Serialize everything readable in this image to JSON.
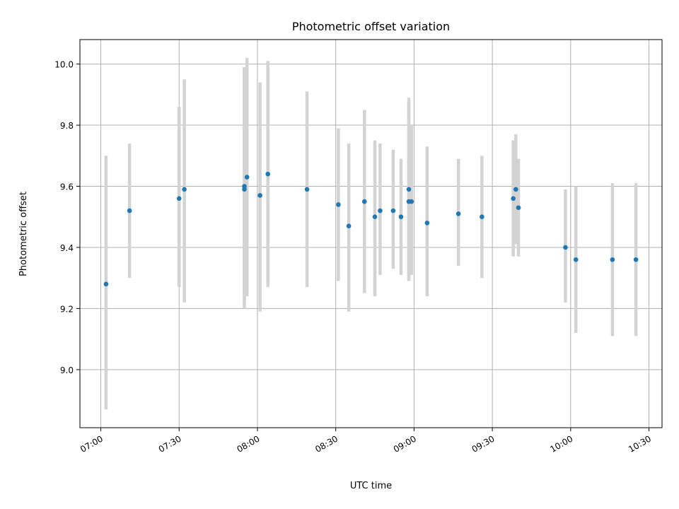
{
  "chart_data": {
    "type": "scatter",
    "title": "Photometric offset variation",
    "xlabel": "UTC time",
    "ylabel": "Photometric offset",
    "x_axis_type": "time",
    "xlim": [
      "06:52",
      "10:35"
    ],
    "ylim": [
      8.81,
      10.08
    ],
    "x_ticks": [
      "07:00",
      "07:30",
      "08:00",
      "08:30",
      "09:00",
      "09:30",
      "10:00",
      "10:30"
    ],
    "y_ticks": [
      "9.0",
      "9.2",
      "9.4",
      "9.6",
      "9.8",
      "10.0"
    ],
    "grid": true,
    "legend": "none",
    "colors": {
      "marker": "#1f77b4",
      "error_bar": "#d3d3d3",
      "grid": "#b0b0b0",
      "axes": "#000000"
    },
    "points": [
      {
        "x": "07:02",
        "y": 9.28,
        "lo": 8.87,
        "hi": 9.7
      },
      {
        "x": "07:11",
        "y": 9.52,
        "lo": 9.3,
        "hi": 9.74
      },
      {
        "x": "07:30",
        "y": 9.56,
        "lo": 9.27,
        "hi": 9.86
      },
      {
        "x": "07:32",
        "y": 9.59,
        "lo": 9.22,
        "hi": 9.95
      },
      {
        "x": "07:55",
        "y": 9.6,
        "lo": 9.22,
        "hi": 9.99
      },
      {
        "x": "07:55",
        "y": 9.59,
        "lo": 9.2,
        "hi": 9.98
      },
      {
        "x": "07:56",
        "y": 9.63,
        "lo": 9.24,
        "hi": 10.02
      },
      {
        "x": "08:01",
        "y": 9.57,
        "lo": 9.19,
        "hi": 9.94
      },
      {
        "x": "08:04",
        "y": 9.64,
        "lo": 9.27,
        "hi": 10.01
      },
      {
        "x": "08:19",
        "y": 9.59,
        "lo": 9.27,
        "hi": 9.91
      },
      {
        "x": "08:31",
        "y": 9.54,
        "lo": 9.29,
        "hi": 9.79
      },
      {
        "x": "08:35",
        "y": 9.47,
        "lo": 9.19,
        "hi": 9.74
      },
      {
        "x": "08:41",
        "y": 9.55,
        "lo": 9.25,
        "hi": 9.85
      },
      {
        "x": "08:45",
        "y": 9.5,
        "lo": 9.24,
        "hi": 9.75
      },
      {
        "x": "08:47",
        "y": 9.52,
        "lo": 9.31,
        "hi": 9.74
      },
      {
        "x": "08:52",
        "y": 9.52,
        "lo": 9.33,
        "hi": 9.72
      },
      {
        "x": "08:55",
        "y": 9.5,
        "lo": 9.31,
        "hi": 9.69
      },
      {
        "x": "08:58",
        "y": 9.59,
        "lo": 9.29,
        "hi": 9.89
      },
      {
        "x": "08:58",
        "y": 9.55,
        "lo": 9.29,
        "hi": 9.82
      },
      {
        "x": "08:59",
        "y": 9.55,
        "lo": 9.31,
        "hi": 9.8
      },
      {
        "x": "09:05",
        "y": 9.48,
        "lo": 9.24,
        "hi": 9.73
      },
      {
        "x": "09:17",
        "y": 9.51,
        "lo": 9.34,
        "hi": 9.69
      },
      {
        "x": "09:26",
        "y": 9.5,
        "lo": 9.3,
        "hi": 9.7
      },
      {
        "x": "09:38",
        "y": 9.56,
        "lo": 9.37,
        "hi": 9.75
      },
      {
        "x": "09:39",
        "y": 9.59,
        "lo": 9.41,
        "hi": 9.77
      },
      {
        "x": "09:40",
        "y": 9.53,
        "lo": 9.37,
        "hi": 9.69
      },
      {
        "x": "09:58",
        "y": 9.4,
        "lo": 9.22,
        "hi": 9.59
      },
      {
        "x": "10:02",
        "y": 9.36,
        "lo": 9.12,
        "hi": 9.6
      },
      {
        "x": "10:16",
        "y": 9.36,
        "lo": 9.11,
        "hi": 9.61
      },
      {
        "x": "10:25",
        "y": 9.36,
        "lo": 9.11,
        "hi": 9.61
      }
    ]
  }
}
